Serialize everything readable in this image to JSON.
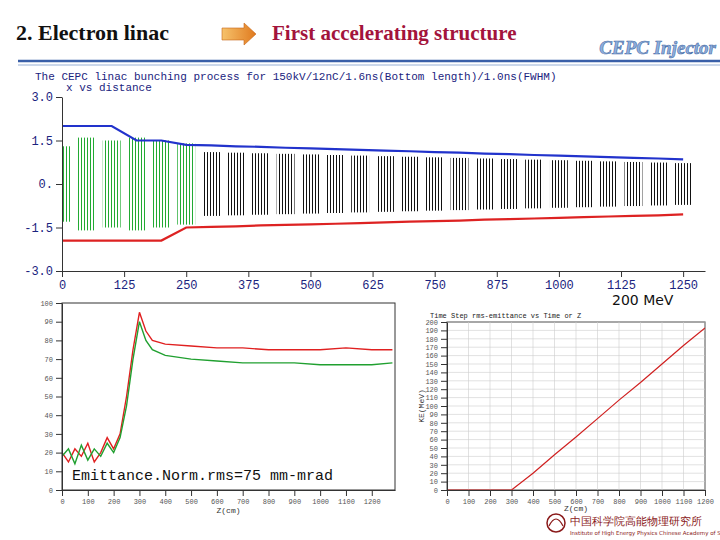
{
  "header": {
    "title": "2. Electron linac",
    "subtitle": "First accelerating structure",
    "logo": "CEPC Injector"
  },
  "footer": {
    "institute_cn": "中国科学院高能物理研究所",
    "institute_en": "Institute of High Energy Physics Chinese Academy of Sciences"
  },
  "chart_data": [
    {
      "type": "line",
      "title": "The CEPC linac bunching process for 150kV/12nC/1.6ns(Bottom length)/1.0ns(FWHM)",
      "subtitle": "x vs distance",
      "x": [
        0,
        50,
        100,
        150,
        200,
        250,
        300,
        350,
        400,
        450,
        500,
        550,
        600,
        650,
        700,
        750,
        800,
        850,
        900,
        950,
        1000,
        1050,
        1100,
        1150,
        1200,
        1250
      ],
      "xlim": [
        0,
        1294
      ],
      "xticks": [
        0,
        125,
        250,
        375,
        500,
        625,
        750,
        875,
        1000,
        1125,
        1250
      ],
      "ylim": [
        -3,
        3
      ],
      "yticks": [
        {
          "value": 3,
          "label": "3.0"
        },
        1.5,
        {
          "value": 0,
          "label": "0."
        },
        -1.5,
        {
          "value": -3,
          "label": "-3.0"
        }
      ],
      "grid": false,
      "series": [
        {
          "type": "range",
          "color": "#22aa33",
          "values": [
            1.3,
            1.6,
            1.5,
            1.6,
            1.5,
            1.4,
            null,
            null,
            null,
            null,
            null,
            null,
            null,
            null,
            null,
            null,
            null,
            null,
            null,
            null,
            null,
            null,
            null,
            null,
            null,
            null
          ],
          "low": [
            -1.3,
            -1.6,
            -1.5,
            -1.6,
            -1.5,
            -1.4,
            null,
            null,
            null,
            null,
            null,
            null,
            null,
            null,
            null,
            null,
            null,
            null,
            null,
            null,
            null,
            null,
            null,
            null,
            null,
            null
          ]
        },
        {
          "type": "range",
          "color": "#111111",
          "values": [
            null,
            null,
            null,
            null,
            null,
            null,
            1.1,
            1.08,
            1.06,
            1.04,
            1.02,
            1.0,
            0.98,
            0.96,
            0.94,
            0.92,
            0.9,
            0.88,
            0.86,
            0.84,
            0.82,
            0.8,
            0.78,
            0.76,
            0.74,
            0.72
          ],
          "low": [
            null,
            null,
            null,
            null,
            null,
            null,
            -1.1,
            -1.08,
            -1.06,
            -1.04,
            -1.02,
            -1.0,
            -0.98,
            -0.96,
            -0.94,
            -0.92,
            -0.9,
            -0.88,
            -0.86,
            -0.84,
            -0.82,
            -0.8,
            -0.78,
            -0.76,
            -0.74,
            -0.72
          ]
        },
        {
          "type": "line",
          "color": "#2233cc",
          "values": [
            2.0,
            2.0,
            2.0,
            1.5,
            1.5,
            1.35,
            1.33,
            1.3,
            1.28,
            1.25,
            1.23,
            1.2,
            1.18,
            1.15,
            1.13,
            1.1,
            1.08,
            1.05,
            1.03,
            1.0,
            0.98,
            0.95,
            0.93,
            0.9,
            0.88,
            0.85
          ]
        },
        {
          "type": "line",
          "color": "#dd2222",
          "values": [
            -1.95,
            -1.95,
            -1.95,
            -1.95,
            -1.95,
            -1.5,
            -1.48,
            -1.46,
            -1.43,
            -1.41,
            -1.39,
            -1.37,
            -1.35,
            -1.32,
            -1.3,
            -1.28,
            -1.26,
            -1.23,
            -1.21,
            -1.19,
            -1.17,
            -1.14,
            -1.12,
            -1.1,
            -1.08,
            -1.05
          ]
        }
      ]
    },
    {
      "type": "line",
      "xlabel": "Z(cm)",
      "annotation": "Emittance.Norm.rms=75 mm-mrad",
      "x": [
        0,
        25,
        50,
        75,
        100,
        125,
        150,
        175,
        200,
        225,
        250,
        275,
        300,
        325,
        350,
        400,
        500,
        600,
        700,
        800,
        900,
        1000,
        1100,
        1200,
        1280
      ],
      "xlim": [
        0,
        1290
      ],
      "xticks": [
        0,
        100,
        200,
        300,
        400,
        500,
        600,
        700,
        800,
        900,
        1000,
        1100,
        1200
      ],
      "ylim": [
        0,
        100
      ],
      "yticks": [
        0,
        10,
        20,
        30,
        40,
        50,
        60,
        70,
        80,
        90,
        100
      ],
      "grid": false,
      "series": [
        {
          "color": "#e02020",
          "values": [
            20,
            15,
            22,
            18,
            25,
            15,
            20,
            28,
            22,
            30,
            50,
            75,
            95,
            85,
            80,
            78,
            77,
            76,
            76,
            75,
            75,
            75,
            76,
            75,
            75
          ]
        },
        {
          "color": "#20a030",
          "values": [
            18,
            22,
            14,
            24,
            16,
            22,
            18,
            25,
            20,
            28,
            45,
            70,
            90,
            80,
            75,
            72,
            70,
            69,
            68,
            68,
            68,
            67,
            67,
            67,
            68
          ]
        }
      ]
    },
    {
      "type": "line",
      "title": "Time Step rms-emittance vs Time or Z",
      "xlabel": "Z(cm)",
      "ylabel": "KE(MeV)",
      "annotation": "200 MeV",
      "x": [
        0,
        100,
        200,
        300,
        400,
        500,
        600,
        700,
        800,
        900,
        1000,
        1100,
        1200
      ],
      "xlim": [
        0,
        1200
      ],
      "xticks": [
        0,
        100,
        200,
        300,
        400,
        500,
        600,
        700,
        800,
        900,
        1000,
        1100,
        1200
      ],
      "ylim": [
        0,
        200
      ],
      "yticks": [
        0,
        10,
        20,
        30,
        40,
        50,
        60,
        70,
        80,
        90,
        100,
        110,
        120,
        130,
        140,
        150,
        160,
        170,
        180,
        190,
        200
      ],
      "grid": true,
      "series": [
        {
          "color": "#d02020",
          "values": [
            0,
            0,
            0,
            0,
            20,
            42,
            63,
            85,
            107,
            128,
            150,
            172,
            193
          ]
        }
      ]
    }
  ]
}
